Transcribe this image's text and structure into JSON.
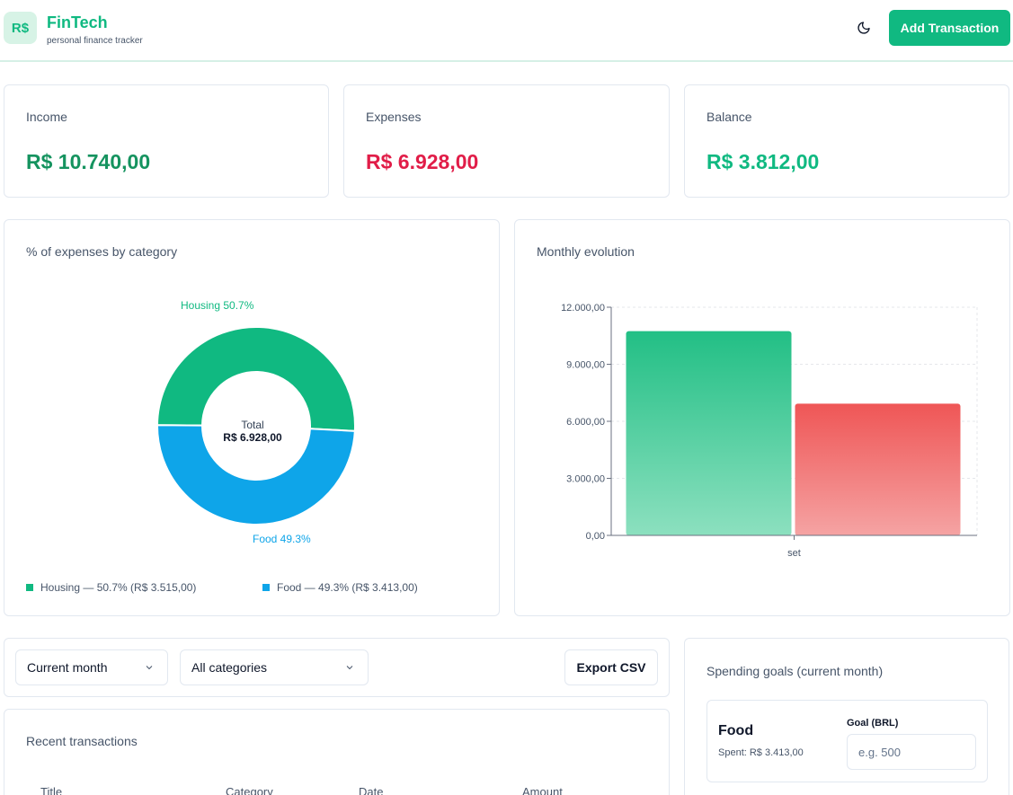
{
  "header": {
    "logo_text": "R$",
    "title": "FinTech",
    "subtitle": "personal finance tracker",
    "add_button": "Add Transaction"
  },
  "summary": {
    "income_label": "Income",
    "income_value": "R$ 10.740,00",
    "expenses_label": "Expenses",
    "expenses_value": "R$ 6.928,00",
    "balance_label": "Balance",
    "balance_value": "R$ 3.812,00"
  },
  "colors": {
    "accent": "#10b981",
    "expense": "#e11d48",
    "housing": "#10b981",
    "food": "#0ea5e9"
  },
  "donut": {
    "title": "% of expenses by category",
    "center_label": "Total",
    "center_value": "R$ 6.928,00",
    "housing_callout": "Housing 50.7%",
    "food_callout": "Food 49.3%",
    "legend_housing": "Housing — 50.7% (R$ 3.515,00)",
    "legend_food": "Food — 49.3% (R$ 3.413,00)"
  },
  "monthly": {
    "title": "Monthly evolution"
  },
  "chart_data": [
    {
      "type": "pie",
      "title": "% of expenses by category",
      "labels": [
        "Housing",
        "Food"
      ],
      "values": [
        3515,
        3413
      ],
      "percentages": [
        50.7,
        49.3
      ]
    },
    {
      "type": "bar",
      "title": "Monthly evolution",
      "categories": [
        "set"
      ],
      "series": [
        {
          "values": [
            10740
          ]
        },
        {
          "values": [
            6928
          ]
        }
      ],
      "ylim": [
        0,
        12000
      ],
      "yticks": [
        "0,00",
        "3.000,00",
        "6.000,00",
        "9.000,00",
        "12.000,00"
      ],
      "grid": true
    }
  ],
  "filters": {
    "period": "Current month",
    "category": "All categories",
    "export": "Export CSV"
  },
  "transactions": {
    "title": "Recent transactions",
    "columns": [
      "Title",
      "Category",
      "Date",
      "Amount"
    ]
  },
  "goals": {
    "title": "Spending goals (current month)",
    "category": "Food",
    "spent": "Spent: R$ 3.413,00",
    "goal_label": "Goal (BRL)",
    "placeholder": "e.g. 500"
  }
}
